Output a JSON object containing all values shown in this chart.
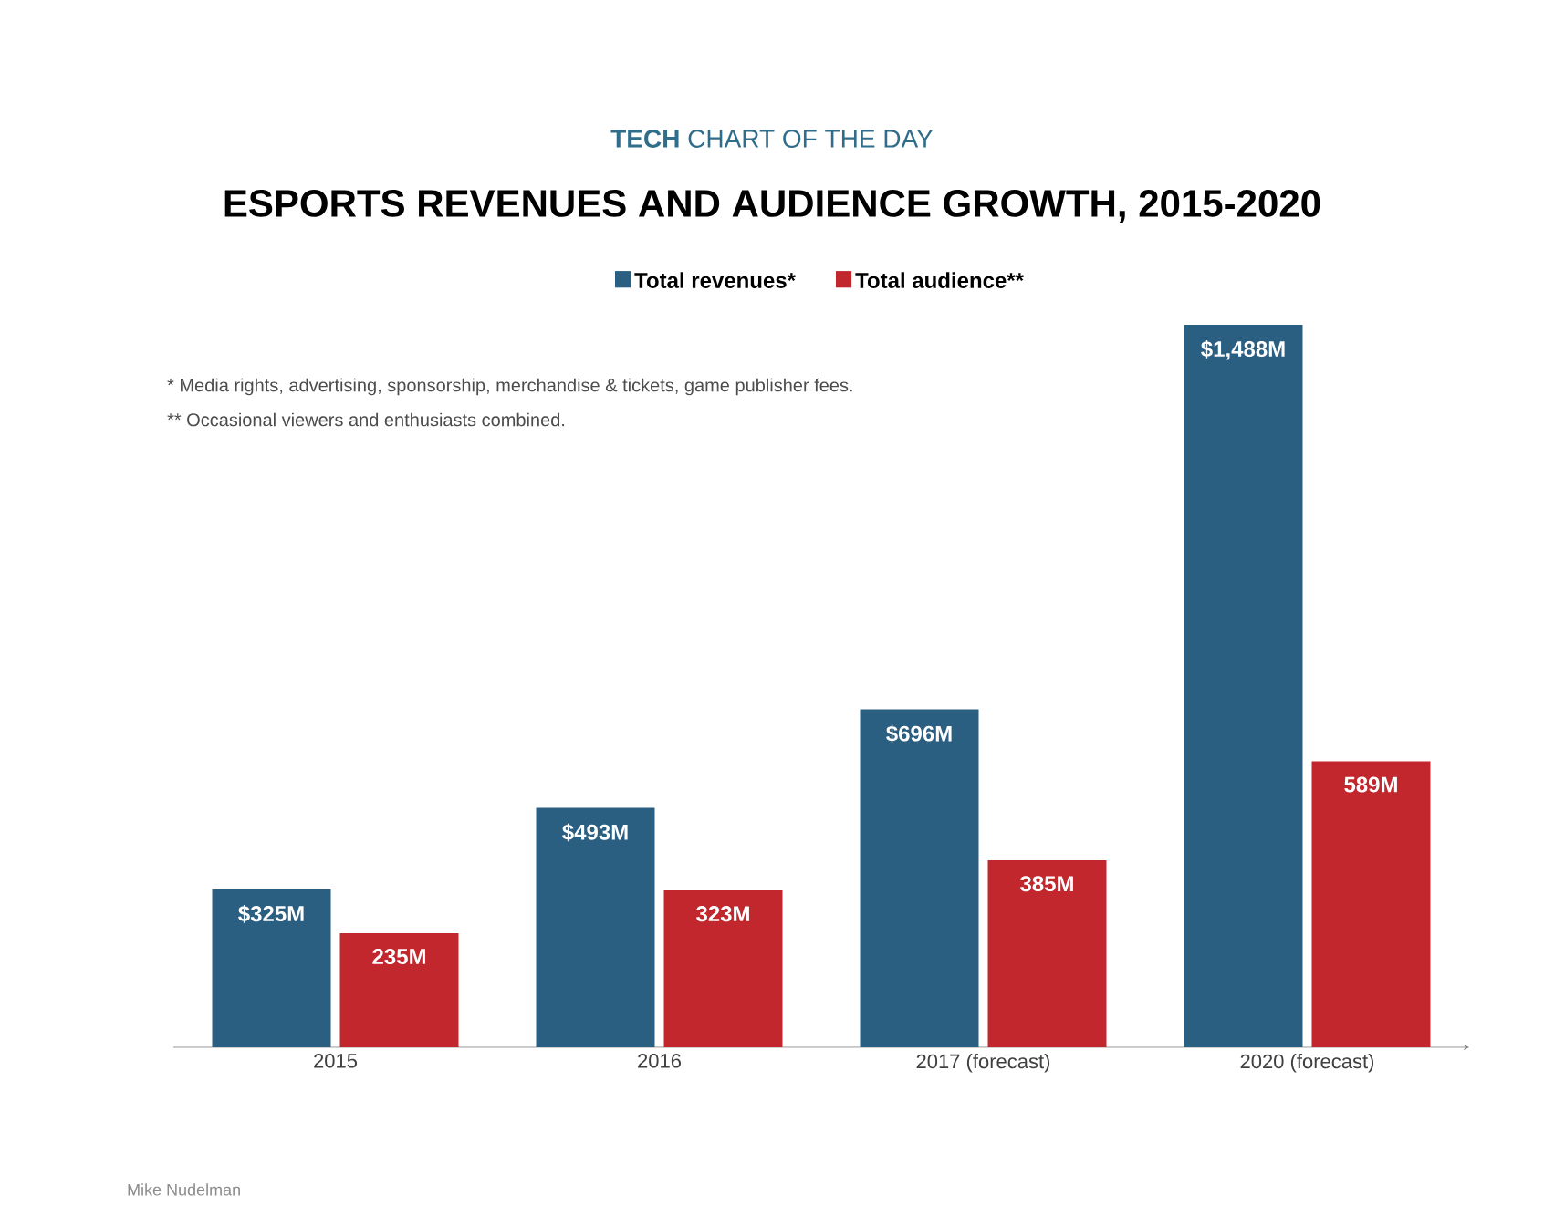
{
  "chart_data": {
    "type": "bar",
    "title": "ESPORTS REVENUES AND AUDIENCE GROWTH, 2015-2020",
    "subtitle": "**TECH** CHART OF THE DAY",
    "categories": [
      "2015",
      "2016",
      "2017 (forecast)",
      "2020 (forecast)"
    ],
    "series": [
      {
        "name": "Total revenues*",
        "color": "#2b5f82",
        "values": [
          325,
          493,
          696,
          1488
        ],
        "value_labels": [
          "$325M",
          "$493M",
          "$696M",
          "$1,488M"
        ]
      },
      {
        "name": "Total audience**",
        "color": "#c1272d",
        "values": [
          235,
          323,
          385,
          589
        ],
        "value_labels": [
          "235M",
          "323M",
          "385M",
          "589M"
        ]
      }
    ],
    "legend": "top",
    "annotations": [
      "* Media rights, advertising, sponsorship, merchandise & tickets, game publisher fees.",
      "** Occasional viewers and enthusiasts combined.",
      "Mike Nudelman"
    ]
  }
}
